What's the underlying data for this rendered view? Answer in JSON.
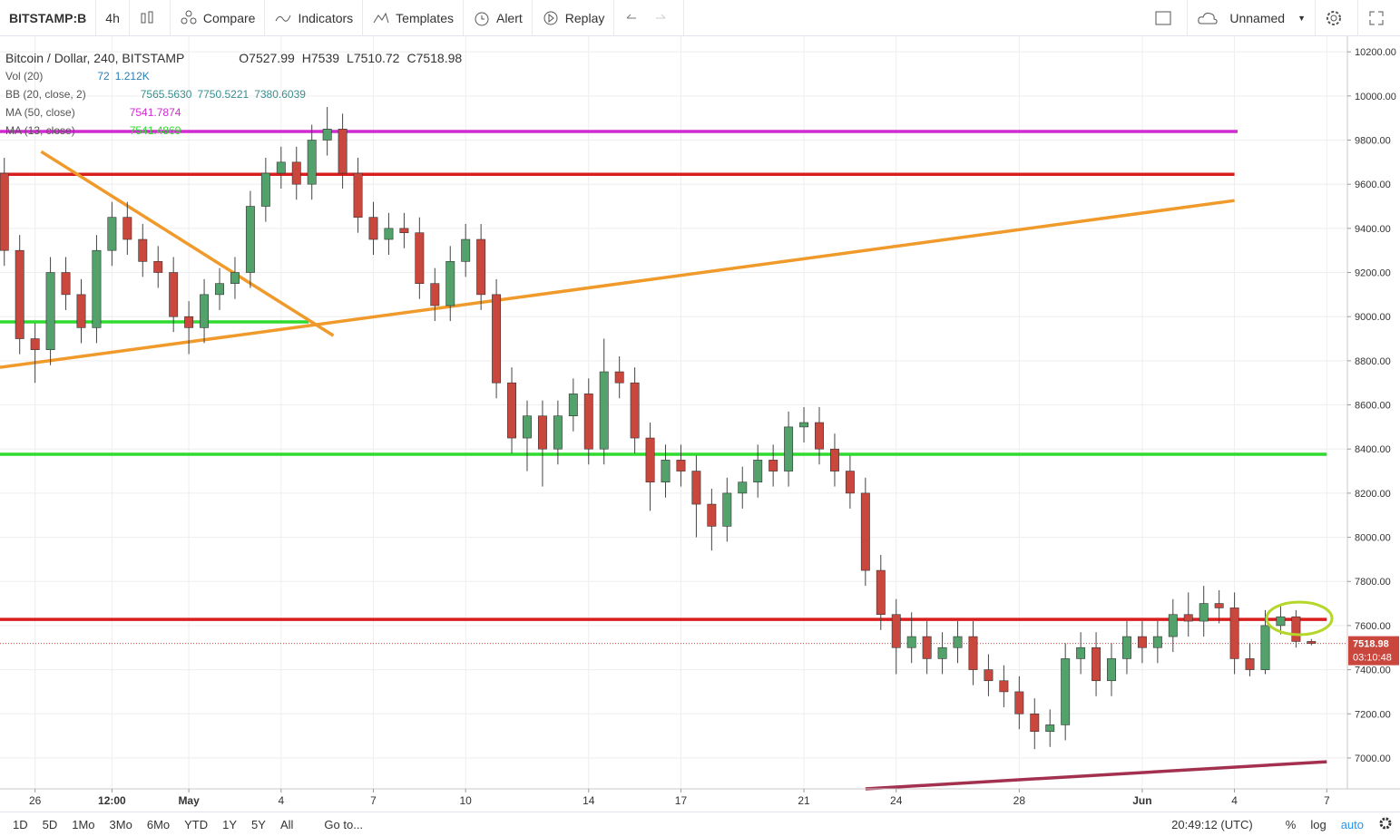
{
  "toolbar": {
    "symbol": "BITSTAMP:B",
    "interval": "4h",
    "buttons": [
      "Compare",
      "Indicators",
      "Templates",
      "Alert",
      "Replay"
    ],
    "layout_name": "Unnamed"
  },
  "legend": {
    "title": "Bitcoin / Dollar, 240, BITSTAMP",
    "ohlc_labels": [
      "O",
      "H",
      "L",
      "C"
    ],
    "indicators": [
      {
        "name": "Vol (20)",
        "values": [
          "72",
          "1.212K"
        ]
      },
      {
        "name": "BB (20, close, 2)",
        "values": [
          "7565.5630",
          "7750.5221",
          "7380.6039"
        ]
      },
      {
        "name": "MA (50, close)",
        "values": [
          "7541.7874"
        ]
      },
      {
        "name": "MA (13, close)",
        "values": [
          "7541.4869"
        ]
      }
    ]
  },
  "bottom_bar": {
    "ranges": [
      "1D",
      "5D",
      "1Mo",
      "3Mo",
      "6Mo",
      "YTD",
      "1Y",
      "5Y",
      "All"
    ],
    "goto": "Go to...",
    "clock": "20:49:12 (UTC)",
    "options": [
      "%",
      "log",
      "auto"
    ]
  },
  "chart_data": {
    "type": "candlestick",
    "up_color": "#53a26b",
    "down_color": "#c9473d",
    "grid": true,
    "countdown": "03:10:48",
    "xlim": [
      -5.14,
      38.67
    ],
    "ylim": [
      6860,
      10250
    ],
    "xticks": [
      {
        "value": -4,
        "label": "26"
      },
      {
        "value": -1.5,
        "label": "12:00"
      },
      {
        "value": 1,
        "label": "May"
      },
      4,
      7,
      10,
      14,
      17,
      21,
      24,
      28,
      {
        "value": 32,
        "label": "Jun"
      },
      {
        "value": 35,
        "label": "4"
      },
      {
        "value": 38,
        "label": "7"
      }
    ],
    "yticks": [
      {
        "value": 7000,
        "label": "7000.00"
      },
      {
        "value": 7200,
        "label": "7200.00"
      },
      {
        "value": 7400,
        "label": "7400.00"
      },
      {
        "value": 7600,
        "label": "7600.00"
      },
      {
        "value": 7800,
        "label": "7800.00"
      },
      {
        "value": 8000,
        "label": "8000.00"
      },
      {
        "value": 8200,
        "label": "8200.00"
      },
      {
        "value": 8400,
        "label": "8400.00"
      },
      {
        "value": 8600,
        "label": "8600.00"
      },
      {
        "value": 8800,
        "label": "8800.00"
      },
      {
        "value": 9000,
        "label": "9000.00"
      },
      {
        "value": 9200,
        "label": "9200.00"
      },
      {
        "value": 9400,
        "label": "9400.00"
      },
      {
        "value": 9600,
        "label": "9600.00"
      },
      {
        "value": 9800,
        "label": "9800.00"
      },
      {
        "value": 10000,
        "label": "10000.00"
      },
      {
        "value": 10200,
        "label": "10200.00"
      }
    ],
    "x": [
      -5,
      -4.5,
      -4,
      -3.5,
      -3,
      -2.5,
      -2,
      -1.5,
      -1,
      -0.5,
      0,
      0.5,
      1,
      1.5,
      2,
      2.5,
      3,
      3.5,
      4,
      4.5,
      5,
      5.5,
      6,
      6.5,
      7,
      7.5,
      8,
      8.5,
      9,
      9.5,
      10,
      10.5,
      11,
      11.5,
      12,
      12.5,
      13,
      13.5,
      14,
      14.5,
      15,
      15.5,
      16,
      16.5,
      17,
      17.5,
      18,
      18.5,
      19,
      19.5,
      20,
      20.5,
      21,
      21.5,
      22,
      22.5,
      23,
      23.5,
      24,
      24.5,
      25,
      25.5,
      26,
      26.5,
      27,
      27.5,
      28,
      28.5,
      29,
      29.5,
      30,
      30.5,
      31,
      31.5,
      32,
      32.5,
      33,
      33.5,
      34,
      34.5,
      35,
      35.5,
      36,
      36.5,
      37,
      37.5
    ],
    "open": [
      9650,
      9300,
      8900,
      8850,
      9200,
      9100,
      8950,
      9300,
      9450,
      9350,
      9250,
      9200,
      9000,
      8950,
      9100,
      9150,
      9200,
      9500,
      9650,
      9700,
      9600,
      9800,
      9850,
      9650,
      9450,
      9350,
      9400,
      9380,
      9150,
      9050,
      9250,
      9350,
      9100,
      8700,
      8450,
      8550,
      8400,
      8550,
      8650,
      8400,
      8750,
      8700,
      8450,
      8250,
      8350,
      8300,
      8150,
      8050,
      8200,
      8250,
      8350,
      8300,
      8500,
      8520,
      8400,
      8300,
      8200,
      7850,
      7650,
      7500,
      7550,
      7450,
      7500,
      7550,
      7400,
      7350,
      7300,
      7200,
      7120,
      7150,
      7450,
      7500,
      7350,
      7450,
      7550,
      7500,
      7550,
      7650,
      7620,
      7700,
      7680,
      7450,
      7400,
      7600,
      7640,
      7527.99
    ],
    "high": [
      9720,
      9370,
      8970,
      9270,
      9270,
      9170,
      9370,
      9520,
      9520,
      9420,
      9320,
      9270,
      9070,
      9170,
      9220,
      9270,
      9570,
      9720,
      9770,
      9770,
      9870,
      9950,
      9920,
      9720,
      9520,
      9470,
      9470,
      9450,
      9220,
      9320,
      9420,
      9420,
      9170,
      8770,
      8620,
      8620,
      8620,
      8720,
      8720,
      8900,
      8820,
      8770,
      8520,
      8420,
      8420,
      8370,
      8220,
      8270,
      8320,
      8420,
      8420,
      8570,
      8590,
      8590,
      8470,
      8370,
      8270,
      7920,
      7720,
      7660,
      7620,
      7570,
      7620,
      7620,
      7470,
      7420,
      7370,
      7270,
      7220,
      7520,
      7570,
      7570,
      7520,
      7620,
      7620,
      7620,
      7720,
      7750,
      7780,
      7760,
      7750,
      7520,
      7670,
      7690,
      7670,
      7539
    ],
    "low": [
      9230,
      8830,
      8700,
      8780,
      9030,
      8880,
      8880,
      9230,
      9280,
      9180,
      9130,
      8930,
      8830,
      8880,
      9030,
      9080,
      9130,
      9430,
      9580,
      9530,
      9530,
      9730,
      9580,
      9380,
      9280,
      9280,
      9310,
      9080,
      8980,
      8980,
      9180,
      9030,
      8630,
      8380,
      8300,
      8230,
      8330,
      8480,
      8330,
      8330,
      8630,
      8380,
      8120,
      8180,
      8230,
      8000,
      7940,
      7980,
      8130,
      8180,
      8230,
      8230,
      8430,
      8330,
      8230,
      8130,
      7780,
      7580,
      7380,
      7430,
      7380,
      7380,
      7430,
      7330,
      7280,
      7230,
      7130,
      7040,
      7050,
      7080,
      7380,
      7280,
      7280,
      7380,
      7430,
      7430,
      7480,
      7550,
      7550,
      7610,
      7380,
      7370,
      7380,
      7560,
      7500,
      7510.72
    ],
    "close": [
      9300,
      8900,
      8850,
      9200,
      9100,
      8950,
      9300,
      9450,
      9350,
      9250,
      9200,
      9000,
      8950,
      9100,
      9150,
      9200,
      9500,
      9650,
      9700,
      9600,
      9800,
      9850,
      9650,
      9450,
      9350,
      9400,
      9380,
      9150,
      9050,
      9250,
      9350,
      9100,
      8700,
      8450,
      8550,
      8400,
      8550,
      8650,
      8400,
      8750,
      8700,
      8450,
      8250,
      8350,
      8300,
      8150,
      8050,
      8200,
      8250,
      8350,
      8300,
      8500,
      8520,
      8400,
      8300,
      8200,
      7850,
      7650,
      7500,
      7550,
      7450,
      7500,
      7550,
      7400,
      7350,
      7300,
      7200,
      7120,
      7150,
      7450,
      7500,
      7350,
      7450,
      7550,
      7500,
      7550,
      7650,
      7620,
      7700,
      7680,
      7450,
      7400,
      7600,
      7640,
      7527.99,
      7518.98
    ],
    "lines": [
      {
        "color": "#d12ad1",
        "x": [
          -5.14,
          35.1
        ],
        "y": [
          9839,
          9839
        ]
      },
      {
        "color": "#d91e1e",
        "x": [
          -5.14,
          35.0
        ],
        "y": [
          9645,
          9645
        ]
      },
      {
        "color": "#2edb2e",
        "x": [
          -5.14,
          4.9
        ],
        "y": [
          8976,
          8976
        ]
      },
      {
        "color": "#2edb2e",
        "x": [
          -5.14,
          38.0
        ],
        "y": [
          8376,
          8376
        ]
      },
      {
        "color": "#d91e1e",
        "x": [
          -5.14,
          38.0
        ],
        "y": [
          7628,
          7628
        ]
      },
      {
        "color": "#ef9a2a",
        "x": [
          -5.14,
          35.0
        ],
        "y": [
          8770,
          9526
        ]
      },
      {
        "color": "#ef9a2a",
        "x": [
          -3.8,
          5.7
        ],
        "y": [
          9748,
          8914
        ]
      },
      {
        "color": "#a3304f",
        "x": [
          23.0,
          38.0
        ],
        "y": [
          6860,
          6983
        ]
      }
    ]
  }
}
